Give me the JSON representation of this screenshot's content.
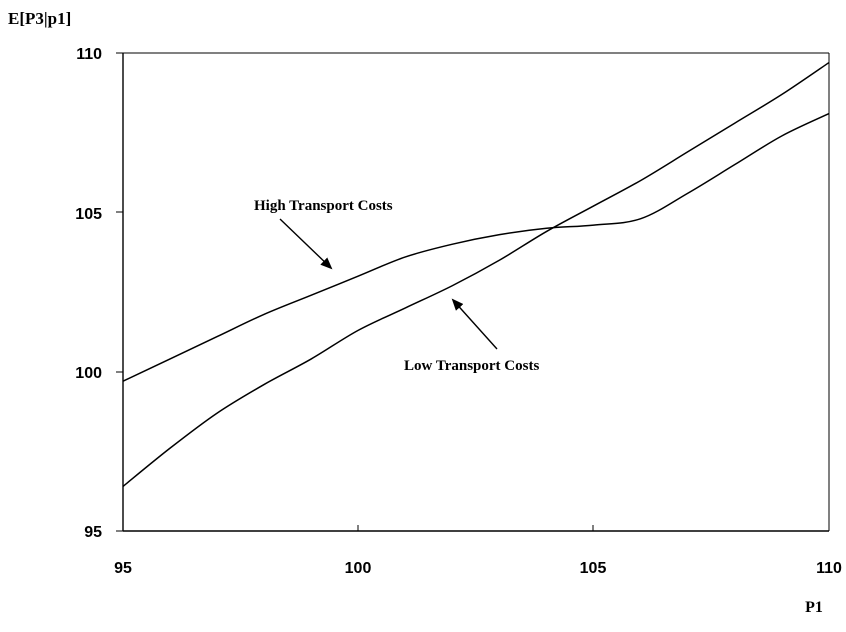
{
  "chart_data": {
    "type": "line",
    "ylabel": "E[P3|p1]",
    "xlabel": "P1",
    "xlim": [
      95,
      110
    ],
    "ylim": [
      95,
      110
    ],
    "x_ticks": [
      "95",
      "100",
      "105",
      "110"
    ],
    "y_ticks": [
      "95",
      "100",
      "105",
      "110"
    ],
    "grid": false,
    "legend": "none",
    "series": [
      {
        "points": [
          [
            95,
            99.7
          ],
          [
            96,
            100.4
          ],
          [
            97,
            101.1
          ],
          [
            98,
            101.8
          ],
          [
            99,
            102.4
          ],
          [
            100,
            103.0
          ],
          [
            101,
            103.6
          ],
          [
            102,
            104.0
          ],
          [
            103,
            104.3
          ],
          [
            104,
            104.5
          ],
          [
            105,
            104.6
          ],
          [
            106,
            104.8
          ],
          [
            107,
            105.6
          ],
          [
            108,
            106.5
          ],
          [
            109,
            107.4
          ],
          [
            110,
            108.1
          ]
        ],
        "color": "#000000"
      },
      {
        "points": [
          [
            95,
            96.4
          ],
          [
            96,
            97.6
          ],
          [
            97,
            98.7
          ],
          [
            98,
            99.6
          ],
          [
            99,
            100.4
          ],
          [
            100,
            101.3
          ],
          [
            101,
            102.0
          ],
          [
            102,
            102.7
          ],
          [
            103,
            103.5
          ],
          [
            104,
            104.4
          ],
          [
            105,
            105.2
          ],
          [
            106,
            106.0
          ],
          [
            107,
            106.9
          ],
          [
            108,
            107.8
          ],
          [
            109,
            108.7
          ],
          [
            110,
            109.7
          ]
        ],
        "color": "#000000"
      }
    ],
    "annotations": [
      {
        "text": "High Transport Costs",
        "arrow_to": [
          99,
          103.2
        ]
      },
      {
        "text": "Low Transport Costs",
        "arrow_to": [
          102,
          102.7
        ]
      }
    ]
  }
}
